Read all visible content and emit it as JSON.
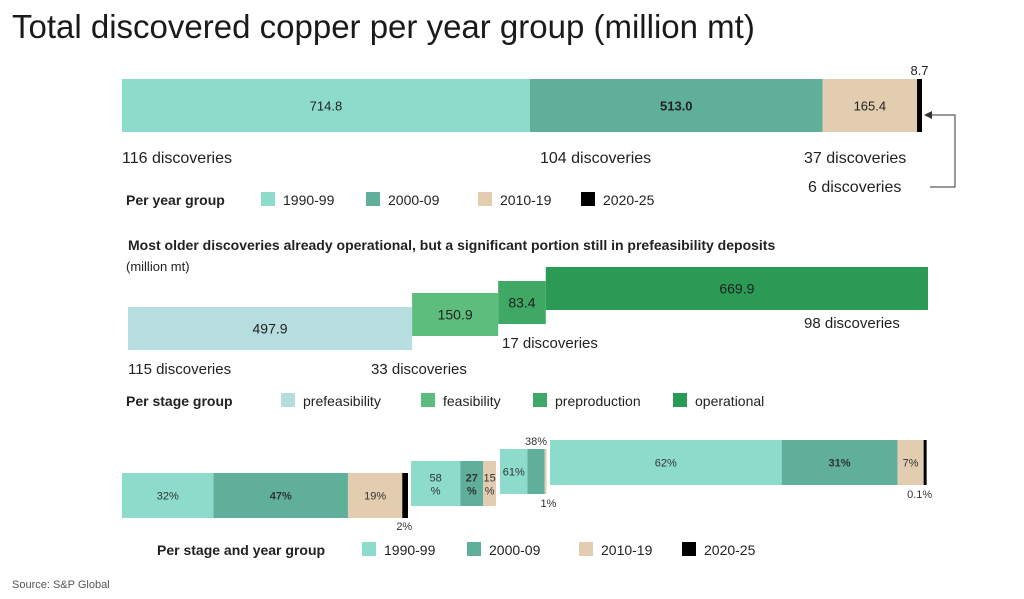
{
  "title": "Total discovered copper per year group (million mt)",
  "source": "Source: S&P Global",
  "colors": {
    "y1990": "#8ddccb",
    "y2000": "#5faf9b",
    "y2010": "#e2cdb0",
    "y2020": "#000000",
    "prefeasibility": "#b7dede",
    "feasibility": "#5cbd7d",
    "preproduction": "#3fa864",
    "operational": "#2b9a55"
  },
  "chart_data": [
    {
      "type": "bar",
      "orientation": "horizontal-stacked",
      "segments": [
        {
          "label": "1990-99",
          "value": 714.8,
          "value_label": "714.8",
          "discoveries": "116 discoveries"
        },
        {
          "label": "2000-09",
          "value": 513.0,
          "value_label": "513.0",
          "discoveries": "104 discoveries"
        },
        {
          "label": "2010-19",
          "value": 165.4,
          "value_label": "165.4",
          "discoveries": "37 discoveries"
        },
        {
          "label": "2020-25",
          "value": 8.7,
          "value_label": "8.7",
          "discoveries": "6 discoveries"
        }
      ],
      "legend_title": "Per year group",
      "legend": [
        "1990-99",
        "2000-09",
        "2010-19",
        "2020-25"
      ]
    },
    {
      "type": "bar",
      "orientation": "horizontal-waterfall",
      "title": "Most older discoveries already operational, but a significant portion still in prefeasibility deposits",
      "unit": "(million mt)",
      "segments": [
        {
          "label": "prefeasibility",
          "value": 497.9,
          "value_label": "497.9",
          "discoveries": "115 discoveries"
        },
        {
          "label": "feasibility",
          "value": 150.9,
          "value_label": "150.9",
          "discoveries": "33 discoveries"
        },
        {
          "label": "preproduction",
          "value": 83.4,
          "value_label": "83.4",
          "discoveries": "17 discoveries"
        },
        {
          "label": "operational",
          "value": 669.9,
          "value_label": "669.9",
          "discoveries": "98 discoveries"
        }
      ],
      "legend_title": "Per stage group",
      "legend": [
        "prefeasibility",
        "feasibility",
        "preproduction",
        "operational"
      ]
    },
    {
      "type": "bar",
      "orientation": "horizontal-stacked-percent",
      "groups": [
        {
          "stage": "prefeasibility",
          "shares": [
            {
              "year": "1990-99",
              "pct": 32,
              "label": "32%"
            },
            {
              "year": "2000-09",
              "pct": 47,
              "label": "47%"
            },
            {
              "year": "2010-19",
              "pct": 19,
              "label": "19%"
            },
            {
              "year": "2020-25",
              "pct": 2,
              "label": "2%"
            }
          ]
        },
        {
          "stage": "feasibility",
          "shares": [
            {
              "year": "1990-99",
              "pct": 58,
              "label": "58\n%"
            },
            {
              "year": "2000-09",
              "pct": 27,
              "label": "27\n%"
            },
            {
              "year": "2010-19",
              "pct": 15,
              "label": "15\n%"
            }
          ]
        },
        {
          "stage": "preproduction",
          "shares": [
            {
              "year": "1990-99",
              "pct": 61,
              "label": "61%"
            },
            {
              "year": "2000-09",
              "pct": 38,
              "label": "38%"
            },
            {
              "year": "2010-19",
              "pct": 1,
              "label": "1%"
            }
          ]
        },
        {
          "stage": "operational",
          "shares": [
            {
              "year": "1990-99",
              "pct": 62,
              "label": "62%"
            },
            {
              "year": "2000-09",
              "pct": 31,
              "label": "31%"
            },
            {
              "year": "2010-19",
              "pct": 7,
              "label": "7%"
            },
            {
              "year": "2020-25",
              "pct": 0.1,
              "label": "0.1%"
            }
          ]
        }
      ],
      "legend_title": "Per stage and year group",
      "legend": [
        "1990-99",
        "2000-09",
        "2010-19",
        "2020-25"
      ]
    }
  ]
}
